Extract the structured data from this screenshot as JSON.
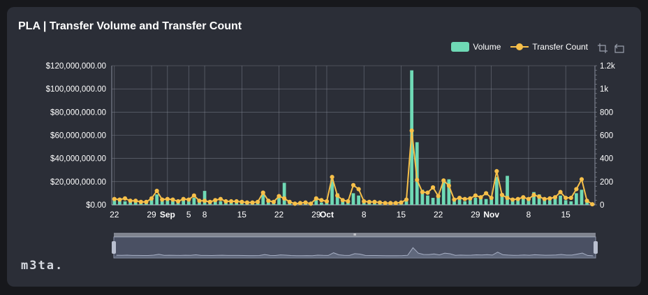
{
  "title": "PLA | Transfer Volume and Transfer Count",
  "brand": "m3ta.",
  "legend": {
    "volume": "Volume",
    "count": "Transfer Count"
  },
  "toolbox": {
    "zoom": "data-zoom-icon",
    "reset": "zoom-reset-icon"
  },
  "colors": {
    "volume": "#6fd9b5",
    "count": "#f7c04a",
    "grid": "#8a8f9c",
    "axis_text": "#ffffff",
    "slider_fill": "#4a5063",
    "slider_border": "#8f97ad"
  },
  "chart_data": {
    "type": "bar",
    "categories": [
      "Aug 22",
      "Aug 23",
      "Aug 24",
      "Aug 25",
      "Aug 26",
      "Aug 27",
      "Aug 28",
      "Aug 29",
      "Aug 30",
      "Aug 31",
      "Sep 1",
      "Sep 2",
      "Sep 3",
      "Sep 4",
      "Sep 5",
      "Sep 6",
      "Sep 7",
      "Sep 8",
      "Sep 9",
      "Sep 10",
      "Sep 11",
      "Sep 12",
      "Sep 13",
      "Sep 14",
      "Sep 15",
      "Sep 16",
      "Sep 17",
      "Sep 18",
      "Sep 19",
      "Sep 20",
      "Sep 21",
      "Sep 22",
      "Sep 23",
      "Sep 24",
      "Sep 25",
      "Sep 26",
      "Sep 27",
      "Sep 28",
      "Sep 29",
      "Sep 30",
      "Oct 1",
      "Oct 2",
      "Oct 3",
      "Oct 4",
      "Oct 5",
      "Oct 6",
      "Oct 7",
      "Oct 8",
      "Oct 9",
      "Oct 10",
      "Oct 11",
      "Oct 12",
      "Oct 13",
      "Oct 14",
      "Oct 15",
      "Oct 16",
      "Oct 17",
      "Oct 18",
      "Oct 19",
      "Oct 20",
      "Oct 21",
      "Oct 22",
      "Oct 23",
      "Oct 24",
      "Oct 25",
      "Oct 26",
      "Oct 27",
      "Oct 28",
      "Oct 29",
      "Oct 30",
      "Oct 31",
      "Nov 1",
      "Nov 2",
      "Nov 3",
      "Nov 4",
      "Nov 5",
      "Nov 6",
      "Nov 7",
      "Nov 8",
      "Nov 9",
      "Nov 10",
      "Nov 11",
      "Nov 12",
      "Nov 13",
      "Nov 14",
      "Nov 15",
      "Nov 16",
      "Nov 17",
      "Nov 18",
      "Nov 19",
      "Nov 20"
    ],
    "x_tick_labels": [
      {
        "index": 0,
        "label": "22",
        "bold": false
      },
      {
        "index": 7,
        "label": "29",
        "bold": false
      },
      {
        "index": 10,
        "label": "Sep",
        "bold": true
      },
      {
        "index": 14,
        "label": "5",
        "bold": false
      },
      {
        "index": 17,
        "label": "8",
        "bold": false
      },
      {
        "index": 24,
        "label": "15",
        "bold": false
      },
      {
        "index": 31,
        "label": "22",
        "bold": false
      },
      {
        "index": 38,
        "label": "29",
        "bold": false
      },
      {
        "index": 40,
        "label": "Oct",
        "bold": true
      },
      {
        "index": 47,
        "label": "8",
        "bold": false
      },
      {
        "index": 54,
        "label": "15",
        "bold": false
      },
      {
        "index": 61,
        "label": "22",
        "bold": false
      },
      {
        "index": 68,
        "label": "29",
        "bold": false
      },
      {
        "index": 71,
        "label": "Nov",
        "bold": true
      },
      {
        "index": 78,
        "label": "8",
        "bold": false
      },
      {
        "index": 85,
        "label": "15",
        "bold": false
      }
    ],
    "y_left": {
      "min": 0,
      "max": 120000000,
      "ticks": [
        "$0.00",
        "$20,000,000.00",
        "$40,000,000.00",
        "$60,000,000.00",
        "$80,000,000.00",
        "$100,000,000.00",
        "$120,000,000.00"
      ]
    },
    "y_right": {
      "min": 0,
      "max": 1200,
      "ticks": [
        "0",
        "200",
        "400",
        "600",
        "800",
        "1k",
        "1.2k"
      ]
    },
    "series": [
      {
        "name": "Volume",
        "type": "bar",
        "axis": "left",
        "values": [
          4000000,
          5000000,
          3000000,
          3000000,
          4000000,
          3000000,
          2000000,
          5000000,
          9000000,
          3000000,
          4000000,
          3000000,
          2000000,
          4000000,
          3000000,
          6000000,
          3000000,
          12000000,
          2000000,
          5000000,
          3000000,
          2000000,
          3000000,
          2000000,
          3000000,
          2000000,
          1000000,
          2000000,
          9000000,
          3000000,
          2000000,
          6000000,
          19000000,
          2000000,
          1000000,
          1000000,
          2000000,
          1000000,
          4000000,
          2000000,
          2000000,
          22000000,
          10000000,
          5000000,
          3000000,
          10000000,
          8000000,
          3000000,
          2000000,
          2000000,
          1000000,
          1000000,
          1000000,
          2000000,
          3000000,
          3000000,
          116000000,
          54000000,
          13000000,
          8000000,
          6000000,
          9000000,
          21000000,
          22000000,
          4000000,
          5000000,
          3000000,
          4000000,
          6000000,
          7000000,
          5000000,
          6000000,
          24000000,
          10000000,
          25000000,
          4000000,
          4000000,
          6000000,
          5000000,
          11000000,
          9000000,
          5000000,
          4000000,
          6000000,
          8000000,
          4000000,
          3000000,
          10000000,
          13000000,
          4000000,
          1000000
        ]
      },
      {
        "name": "Transfer Count",
        "type": "line",
        "axis": "right",
        "values": [
          50,
          45,
          55,
          35,
          35,
          25,
          25,
          55,
          120,
          45,
          50,
          45,
          30,
          50,
          45,
          80,
          35,
          35,
          25,
          40,
          50,
          30,
          30,
          30,
          25,
          20,
          20,
          25,
          105,
          35,
          25,
          75,
          55,
          25,
          10,
          15,
          20,
          10,
          55,
          40,
          30,
          240,
          80,
          40,
          30,
          170,
          135,
          30,
          25,
          25,
          20,
          15,
          15,
          15,
          20,
          45,
          640,
          215,
          110,
          105,
          150,
          75,
          210,
          165,
          45,
          60,
          50,
          55,
          80,
          65,
          100,
          60,
          290,
          85,
          60,
          45,
          50,
          65,
          50,
          85,
          70,
          50,
          55,
          65,
          110,
          60,
          60,
          135,
          220,
          35,
          5
        ]
      }
    ],
    "grid": true,
    "legend_position": "top-right",
    "datazoom_range": [
      0,
      100
    ]
  }
}
